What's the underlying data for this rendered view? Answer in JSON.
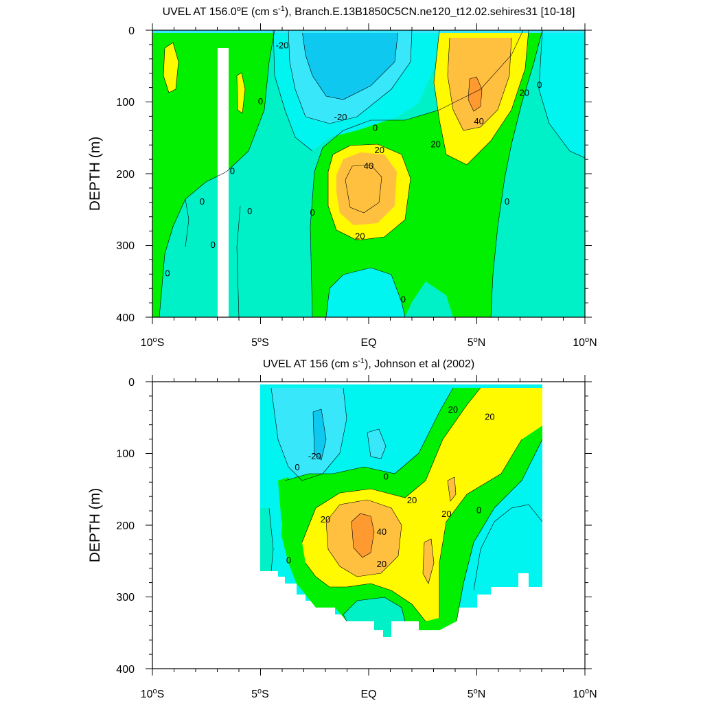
{
  "chart_data": [
    {
      "type": "contour",
      "title": "UVEL AT 156.0°E (cm s-1), Branch.E.13B1850C5CN.ne120_t12.02.sehires31 [10-18]",
      "title_main": "UVEL AT 156.0",
      "title_deg": "o",
      "title_mid": "E (cm s",
      "title_sup": "-1",
      "title_end": "), Branch.E.13B1850C5CN.ne120_t12.02.sehires31 [10-18]",
      "xlabel": "",
      "ylabel": "DEPTH (m)",
      "xlim": [
        -10,
        10
      ],
      "ylim": [
        400,
        0
      ],
      "x_ticks": [
        -10,
        -5,
        0,
        5,
        10
      ],
      "y_ticks": [
        0,
        100,
        200,
        300,
        400
      ],
      "y_tick_labels": [
        "0",
        "100",
        "200",
        "300",
        "400"
      ],
      "contour_interval": 10,
      "contour_labels": [
        {
          "text": "-20",
          "x": -4.0,
          "y": 22
        },
        {
          "text": "0",
          "x": -5.0,
          "y": 100
        },
        {
          "text": "-20",
          "x": -1.3,
          "y": 122
        },
        {
          "text": "0",
          "x": 0.3,
          "y": 137
        },
        {
          "text": "20",
          "x": 0.5,
          "y": 168
        },
        {
          "text": "40",
          "x": 0.0,
          "y": 190
        },
        {
          "text": "20",
          "x": 3.1,
          "y": 160
        },
        {
          "text": "40",
          "x": 5.1,
          "y": 128
        },
        {
          "text": "20",
          "x": 7.2,
          "y": 88
        },
        {
          "text": "0",
          "x": 7.9,
          "y": 77
        },
        {
          "text": "0",
          "x": -6.3,
          "y": 197
        },
        {
          "text": "0",
          "x": -7.7,
          "y": 240
        },
        {
          "text": "0",
          "x": -5.5,
          "y": 253
        },
        {
          "text": "0",
          "x": -2.6,
          "y": 255
        },
        {
          "text": "0",
          "x": 6.4,
          "y": 240
        },
        {
          "text": "20",
          "x": -0.4,
          "y": 288
        },
        {
          "text": "0",
          "x": -7.2,
          "y": 300
        },
        {
          "text": "0",
          "x": -9.3,
          "y": 340
        },
        {
          "text": "0",
          "x": 1.6,
          "y": 376
        }
      ]
    },
    {
      "type": "contour",
      "title": "UVEL AT 156 (cm s-1), Johnson et al (2002)",
      "title_main": "UVEL AT 156 (cm s",
      "title_sup": "-1",
      "title_end": "), Johnson et al (2002)",
      "xlabel": "",
      "ylabel": "DEPTH (m)",
      "xlim": [
        -10,
        10
      ],
      "ylim": [
        400,
        0
      ],
      "x_ticks": [
        -10,
        -5,
        0,
        5,
        10
      ],
      "y_ticks": [
        0,
        100,
        200,
        300,
        400
      ],
      "y_tick_labels": [
        "0",
        "100",
        "200",
        "300",
        "400"
      ],
      "data_extent_lat": [
        -5,
        8
      ],
      "contour_labels": [
        {
          "text": "20",
          "x": 3.9,
          "y": 40
        },
        {
          "text": "20",
          "x": 5.6,
          "y": 50
        },
        {
          "text": "-20",
          "x": -2.5,
          "y": 105
        },
        {
          "text": "0",
          "x": -3.3,
          "y": 120
        },
        {
          "text": "0",
          "x": 0.8,
          "y": 133
        },
        {
          "text": "20",
          "x": 2.0,
          "y": 166
        },
        {
          "text": "20",
          "x": 3.6,
          "y": 185
        },
        {
          "text": "0",
          "x": 5.1,
          "y": 180
        },
        {
          "text": "20",
          "x": -2.0,
          "y": 193
        },
        {
          "text": "40",
          "x": 0.6,
          "y": 210
        },
        {
          "text": "20",
          "x": 0.6,
          "y": 255
        },
        {
          "text": "0",
          "x": -3.7,
          "y": 250
        }
      ]
    }
  ],
  "x_tick_text": {
    "s10": "10",
    "s5": "5",
    "s_suffix": "S",
    "eq": "EQ",
    "n5": "5",
    "n10": "10",
    "n_suffix": "N",
    "deg": "o"
  },
  "colors": {
    "neg30": "#0ec8f0",
    "neg20": "#38e8fa",
    "neg10": "#00f5f0",
    "zero": "#00f0c8",
    "pos10": "#00f000",
    "pos20": "#7ef000",
    "pos30": "#fffa00",
    "pos40": "#ffc040",
    "pos50": "#ff9a30"
  }
}
